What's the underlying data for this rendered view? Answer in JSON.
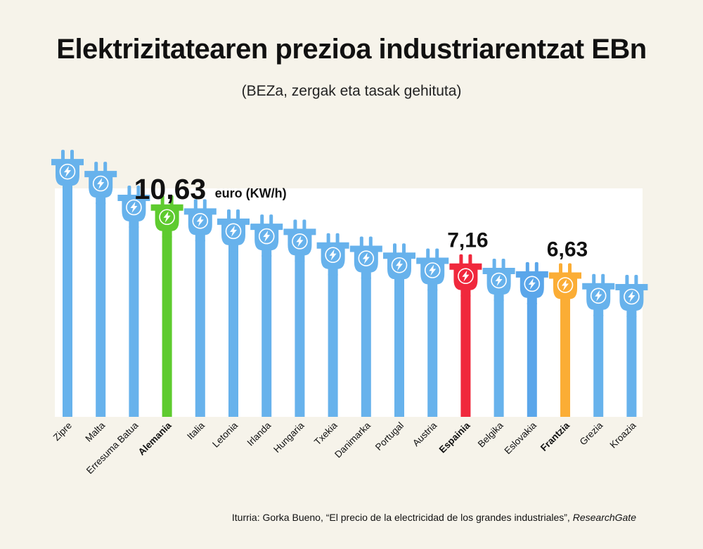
{
  "title": "Elektrizitatearen prezioa industriarentzat EBn",
  "subtitle": "(BEZa, zergak eta tasak gehituta)",
  "source_prefix": "Iturria: Gorka Bueno, “El precio de la electricidad de los grandes industriales”, ",
  "source_italic": "ResearchGate",
  "colors": {
    "default": "#67b2ec",
    "alemania": "#5ecb2f",
    "espainia": "#f0283c",
    "frantzia": "#fbad35",
    "eslovakia": "#5aa6ea",
    "background": "#f6f3ea",
    "panel": "#ffffff"
  },
  "chart_data": {
    "type": "bar",
    "icon": "plug-icon",
    "categories": [
      "Zipre",
      "Malta",
      "Erresuma Batua",
      "Alemania",
      "Italia",
      "Letonia",
      "Irlanda",
      "Hungaria",
      "Txekia",
      "Danimarka",
      "Portugal",
      "Austria",
      "Espainia",
      "Belgika",
      "Eslovakia",
      "Frantzia",
      "Grezia",
      "Kroazia"
    ],
    "values": [
      13.3,
      12.6,
      11.2,
      10.63,
      10.4,
      9.8,
      9.5,
      9.2,
      8.4,
      8.2,
      7.8,
      7.5,
      7.16,
      6.9,
      6.7,
      6.63,
      6.0,
      5.95
    ],
    "highlight": [
      "Alemania",
      "Espainia",
      "Frantzia"
    ],
    "labels": [
      {
        "category": "Alemania",
        "value": "10,63",
        "unit": "euro (KW/h)"
      },
      {
        "category": "Espainia",
        "value": "7,16"
      },
      {
        "category": "Frantzia",
        "value": "6,63"
      }
    ]
  }
}
